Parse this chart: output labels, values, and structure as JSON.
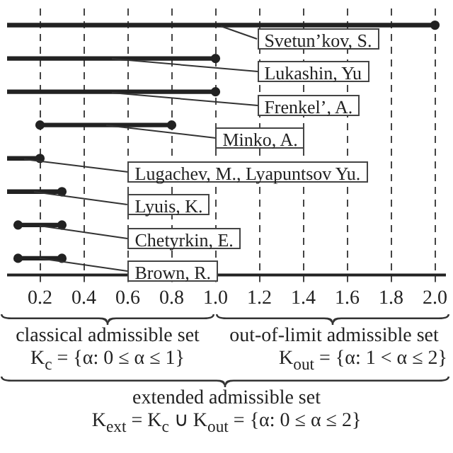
{
  "chart_data": {
    "type": "bar",
    "orientation": "horizontal",
    "categories": [
      "Svetun’kov, S.",
      "Lukashin, Yu",
      "Frenkel’, A.",
      "Minko, A.",
      "Lugachev, M., Lyapuntsov Yu.",
      "Lyuis, K.",
      "Chetyrkin, E.",
      "Brown, R."
    ],
    "series": [
      {
        "type": "bar",
        "color": "#222222",
        "base": [
          0.05,
          0.05,
          0.05,
          0.2,
          0.05,
          0.05,
          0.1,
          0.1
        ],
        "values": [
          1.95,
          0.95,
          0.95,
          0.6,
          0.15,
          0.25,
          0.2,
          0.2
        ]
      },
      {
        "type": "scatter",
        "color": "#222222",
        "marker": "circle",
        "values": [
          null,
          null,
          null,
          0.2,
          null,
          null,
          0.1,
          0.1
        ]
      },
      {
        "type": "scatter",
        "color": "#222222",
        "marker": "circle",
        "values": [
          2.0,
          1.0,
          1.0,
          0.8,
          0.2,
          0.3,
          0.3,
          0.3
        ]
      }
    ],
    "grid": "x",
    "legend": false,
    "xlim": [
      0.05,
      2.05
    ],
    "xticks": [
      0.2,
      0.4,
      0.6,
      0.8,
      {
        "value": 1,
        "label": "1.0"
      },
      1.2,
      1.4,
      1.6,
      1.8,
      {
        "value": 2,
        "label": "2.0"
      }
    ],
    "annotations": [
      "classical admissible set",
      "K$_{c}$ = {α: 0 ≤ α ≤ 1}",
      "out-of-limit admissible set",
      "K$_{out}$ = {α: 1 < α ≤ 2}",
      "extended admissible set",
      "K$_{ext}$ = K$_{c}$ ∪ K$_{out}$ = {α: 0 ≤ α ≤ 2}"
    ]
  }
}
